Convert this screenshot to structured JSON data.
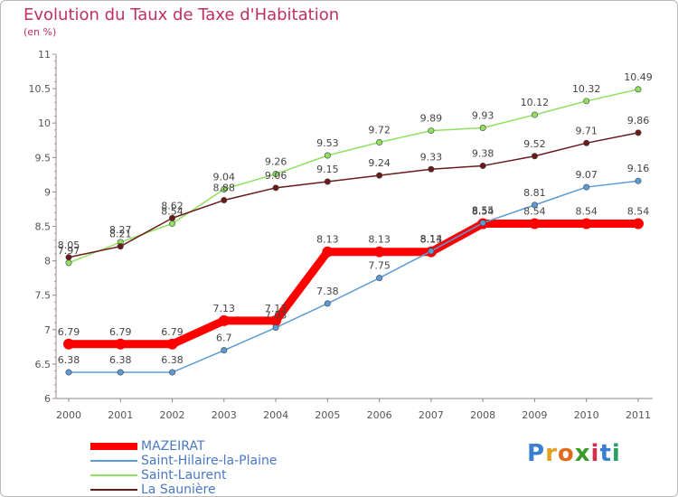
{
  "title": "Evolution du Taux de Taxe d'Habitation",
  "subtitle": "(en %)",
  "logo": {
    "letters": [
      "P",
      "r",
      "o",
      "x",
      "i",
      "t",
      "i"
    ],
    "colors": [
      "#3a7fd0",
      "#e0a020",
      "#e06a20",
      "#3a9a2a",
      "#d03050",
      "#3a7fd0",
      "#2aa060"
    ]
  },
  "chart_data": {
    "type": "line",
    "title": "Evolution du Taux de Taxe d'Habitation",
    "ylabel": "(en %)",
    "xlabel": "",
    "categories": [
      "2000",
      "2001",
      "2002",
      "2003",
      "2004",
      "2005",
      "2006",
      "2007",
      "2008",
      "2009",
      "2010",
      "2011"
    ],
    "ylim": [
      6,
      11
    ],
    "yticks": [
      "6",
      "6.5",
      "7",
      "7.5",
      "8",
      "8.5",
      "9",
      "9.5",
      "10",
      "10.5",
      "11"
    ],
    "grid": false,
    "legend_position": "bottom-left",
    "series": [
      {
        "name": "MAZEIRAT",
        "color": "#ff0000",
        "values": [
          6.79,
          6.79,
          6.79,
          7.13,
          7.13,
          8.13,
          8.13,
          8.13,
          8.54,
          8.54,
          8.54,
          8.54
        ],
        "labels": [
          "6.79",
          "6.79",
          "6.79",
          "7.13",
          "7.13",
          "8.13",
          "8.13",
          "8.13",
          "8.54",
          "8.54",
          "8.54",
          "8.54"
        ]
      },
      {
        "name": "Saint-Hilaire-la-Plaine",
        "color": "#5b9bd5",
        "values": [
          6.38,
          6.38,
          6.38,
          6.7,
          7.03,
          7.38,
          7.75,
          8.14,
          8.55,
          8.81,
          9.07,
          9.16
        ],
        "labels": [
          "6.38",
          "6.38",
          "6.38",
          "6.7",
          "7.03",
          "7.38",
          "7.75",
          "8.14",
          "8.55",
          "8.81",
          "9.07",
          "9.16"
        ]
      },
      {
        "name": "Saint-Laurent",
        "color": "#90e060",
        "values": [
          7.97,
          8.27,
          8.54,
          9.04,
          9.26,
          9.53,
          9.72,
          9.89,
          9.93,
          10.12,
          10.32,
          10.49
        ],
        "labels": [
          "7.97",
          "8.27",
          "8.54",
          "9.04",
          "9.26",
          "9.53",
          "9.72",
          "9.89",
          "9.93",
          "10.12",
          "10.32",
          "10.49"
        ]
      },
      {
        "name": "La Saunière",
        "color": "#6b1a1a",
        "values": [
          8.05,
          8.21,
          8.62,
          8.88,
          9.06,
          9.15,
          9.24,
          9.33,
          9.38,
          9.52,
          9.71,
          9.86
        ],
        "labels": [
          "8.05",
          "8.21",
          "8.62",
          "8.88",
          "9.06",
          "9.15",
          "9.24",
          "9.33",
          "9.38",
          "9.52",
          "9.71",
          "9.86"
        ]
      }
    ]
  }
}
